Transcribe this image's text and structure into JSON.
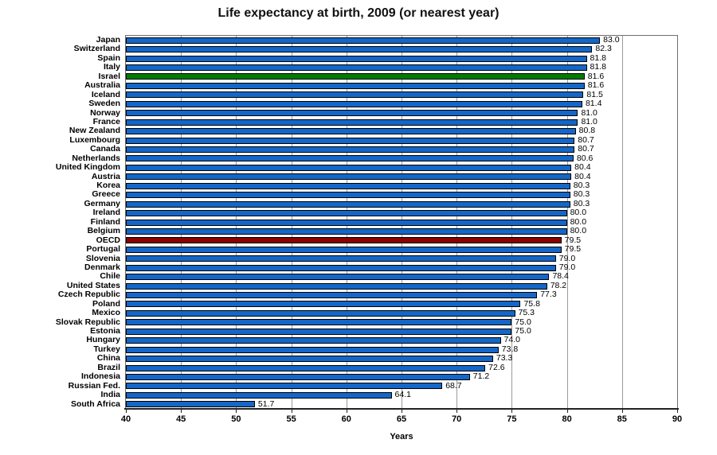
{
  "colors": {
    "background": "#ffffff",
    "bar_default": "#1467c8",
    "bar_border": "#000000",
    "israel_highlight": "#007c00",
    "oecd_highlight": "#8b0000",
    "gridline": "#9b9b9b",
    "plot_border": "#6e6e6e",
    "axis_line": "#222222",
    "text": "#000000"
  },
  "chart_data": {
    "type": "bar",
    "orientation": "horizontal",
    "title": "Life expectancy at birth, 2009 (or nearest year)",
    "xlabel": "Years",
    "ylabel": "",
    "xlim": [
      40,
      90
    ],
    "xticks": [
      40,
      45,
      50,
      55,
      60,
      65,
      70,
      75,
      80,
      85,
      90
    ],
    "grid": "vertical gridlines at 5-year intervals",
    "legend": "none",
    "value_label_decimals": 1,
    "default_bar_color": "#1467c8",
    "highlights": {
      "Israel": "#007c00",
      "OECD": "#8b0000"
    },
    "categories": [
      "Japan",
      "Switzerland",
      "Spain",
      "Italy",
      "Israel",
      "Australia",
      "Iceland",
      "Sweden",
      "Norway",
      "France",
      "New Zealand",
      "Luxembourg",
      "Canada",
      "Netherlands",
      "United Kingdom",
      "Austria",
      "Korea",
      "Greece",
      "Germany",
      "Ireland",
      "Finland",
      "Belgium",
      "OECD",
      "Portugal",
      "Slovenia",
      "Denmark",
      "Chile",
      "United States",
      "Czech Republic",
      "Poland",
      "Mexico",
      "Slovak Republic",
      "Estonia",
      "Hungary",
      "Turkey",
      "China",
      "Brazil",
      "Indonesia",
      "Russian Fed.",
      "India",
      "South Africa"
    ],
    "values": [
      83.0,
      82.3,
      81.8,
      81.8,
      81.6,
      81.6,
      81.5,
      81.4,
      81.0,
      81.0,
      80.8,
      80.7,
      80.7,
      80.6,
      80.4,
      80.4,
      80.3,
      80.3,
      80.3,
      80.0,
      80.0,
      80.0,
      79.5,
      79.5,
      79.0,
      79.0,
      78.4,
      78.2,
      77.3,
      75.8,
      75.3,
      75.0,
      75.0,
      74.0,
      73.8,
      73.3,
      72.6,
      71.2,
      68.7,
      64.1,
      51.7
    ]
  }
}
